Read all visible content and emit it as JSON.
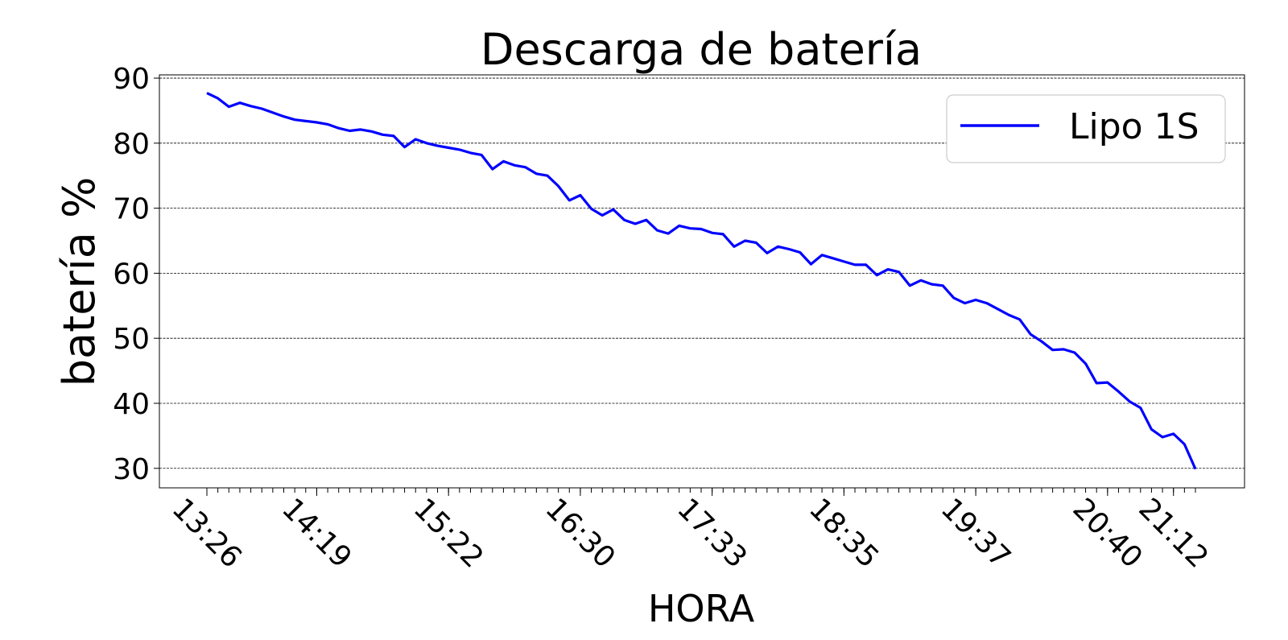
{
  "chart_data": {
    "type": "line",
    "title": "Descarga de batería",
    "xlabel": "HORA",
    "ylabel": "batería %",
    "ylim": [
      27,
      90.5
    ],
    "yticks": [
      30,
      40,
      50,
      60,
      70,
      80,
      90
    ],
    "grid": "horizontal dashed",
    "legend_position": "top-right",
    "x_tick_labels": [
      "13:26",
      "14:19",
      "15:22",
      "16:30",
      "17:33",
      "18:35",
      "19:37",
      "20:40",
      "21:12"
    ],
    "x_tick_sample_index": [
      0,
      10,
      22,
      34,
      46,
      58,
      70,
      82,
      88
    ],
    "series": [
      {
        "name": "Lipo 1S",
        "color": "#0000ff",
        "values": [
          87.7,
          86.9,
          85.6,
          86.2,
          85.7,
          85.3,
          84.7,
          84.1,
          83.6,
          83.4,
          83.2,
          82.9,
          82.3,
          81.9,
          82.1,
          81.8,
          81.3,
          81.1,
          79.4,
          80.6,
          80.0,
          79.6,
          79.3,
          79.0,
          78.5,
          78.2,
          76.0,
          77.2,
          76.6,
          76.3,
          75.3,
          75.0,
          73.4,
          71.2,
          72.0,
          69.9,
          68.9,
          69.8,
          68.2,
          67.6,
          68.2,
          66.6,
          66.1,
          67.3,
          66.9,
          66.8,
          66.2,
          66.0,
          64.1,
          65.0,
          64.7,
          63.1,
          64.1,
          63.7,
          63.2,
          61.4,
          62.8,
          62.3,
          61.8,
          61.3,
          61.3,
          59.7,
          60.6,
          60.2,
          58.1,
          58.9,
          58.3,
          58.1,
          56.2,
          55.4,
          55.9,
          55.4,
          54.5,
          53.6,
          52.9,
          50.6,
          49.5,
          48.2,
          48.3,
          47.8,
          46.1,
          43.1,
          43.2,
          41.8,
          40.3,
          39.3,
          36.0,
          34.8,
          35.3,
          33.7,
          29.9
        ]
      }
    ]
  }
}
